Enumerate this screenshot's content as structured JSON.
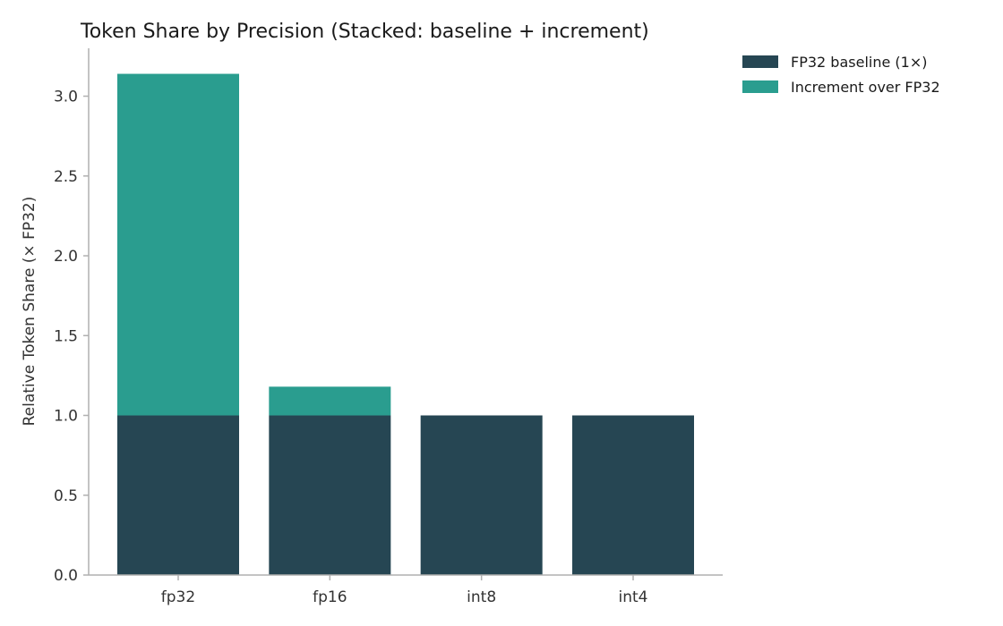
{
  "chart_data": {
    "type": "bar",
    "stacked": true,
    "title": "Token Share by Precision (Stacked: baseline + increment)",
    "xlabel": "",
    "ylabel": "Relative Token Share (× FP32)",
    "categories": [
      "fp32",
      "fp16",
      "int8",
      "int4"
    ],
    "series": [
      {
        "name": "FP32 baseline (1×)",
        "values": [
          1.0,
          1.0,
          1.0,
          1.0
        ],
        "color": "#264653"
      },
      {
        "name": "Increment over FP32",
        "values": [
          2.14,
          0.18,
          0.0,
          0.0
        ],
        "color": "#2a9d8f"
      }
    ],
    "ylim": [
      0,
      3.3
    ],
    "yticks": [
      0.0,
      0.5,
      1.0,
      1.5,
      2.0,
      2.5,
      3.0
    ],
    "ytick_labels": [
      "0.0",
      "0.5",
      "1.0",
      "1.5",
      "2.0",
      "2.5",
      "3.0"
    ],
    "grid": false,
    "legend_position": "outside top-right"
  }
}
